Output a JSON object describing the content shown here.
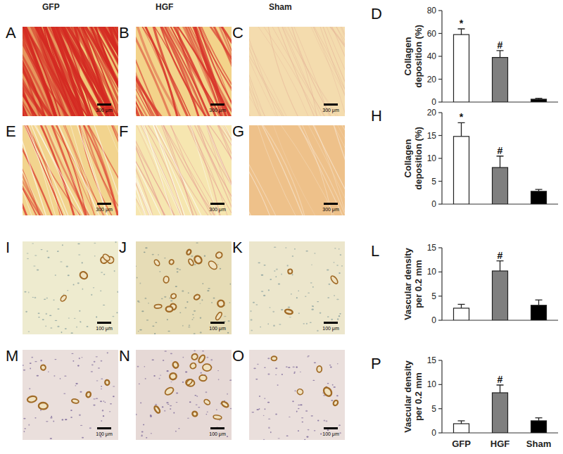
{
  "figure": {
    "columns": [
      "GFP",
      "HGF",
      "Sham"
    ],
    "panels": [
      {
        "letter": "A",
        "scale_bar": "300 μm"
      },
      {
        "letter": "B",
        "scale_bar": "300 μm"
      },
      {
        "letter": "C",
        "scale_bar": "300 μm"
      },
      {
        "letter": "E",
        "scale_bar": "300 μm"
      },
      {
        "letter": "F",
        "scale_bar": "300 μm"
      },
      {
        "letter": "G",
        "scale_bar": "300 μm"
      },
      {
        "letter": "I",
        "scale_bar": "100 μm"
      },
      {
        "letter": "J",
        "scale_bar": "100 μm"
      },
      {
        "letter": "K",
        "scale_bar": "100 μm"
      },
      {
        "letter": "M",
        "scale_bar": "100 μm"
      },
      {
        "letter": "N",
        "scale_bar": "100 μm"
      },
      {
        "letter": "O",
        "scale_bar": "100 μm"
      }
    ],
    "chart_letters": [
      "D",
      "H",
      "L",
      "P"
    ]
  },
  "chart_data": [
    {
      "type": "bar",
      "y_label": "Collagen deposition (%)",
      "categories": [
        null,
        null,
        null
      ],
      "values": [
        59,
        39,
        2.5
      ],
      "errors": [
        5,
        6,
        0.8
      ],
      "significance": [
        "*",
        "#",
        null
      ],
      "colors": [
        "#ffffff",
        "#7f7f7f",
        "#000000"
      ],
      "ylim": [
        0,
        80
      ],
      "yticks": [
        0,
        20,
        40,
        60,
        80
      ],
      "tick_labels": "y"
    },
    {
      "type": "bar",
      "y_label": "Collagen deposition (%)",
      "categories": [
        null,
        null,
        null
      ],
      "values": [
        14.8,
        8,
        2.8
      ],
      "errors": [
        3,
        2.5,
        0.4
      ],
      "significance": [
        "*",
        "#",
        null
      ],
      "colors": [
        "#ffffff",
        "#7f7f7f",
        "#000000"
      ],
      "ylim": [
        0,
        20
      ],
      "yticks": [
        0,
        5,
        10,
        15,
        20
      ],
      "tick_labels": "y"
    },
    {
      "type": "bar",
      "y_label": "Vascular density per 0.2 mm",
      "categories": [
        null,
        null,
        null
      ],
      "values": [
        2.5,
        10.2,
        3.1
      ],
      "errors": [
        0.8,
        2.1,
        1.1
      ],
      "significance": [
        null,
        "#",
        null
      ],
      "colors": [
        "#ffffff",
        "#7f7f7f",
        "#000000"
      ],
      "ylim": [
        0,
        15
      ],
      "yticks": [
        0,
        5,
        10,
        15
      ],
      "tick_labels": "y"
    },
    {
      "type": "bar",
      "y_label": "Vascular density per 0.2 mm",
      "categories": [
        "GFP",
        "HGF",
        "Sham"
      ],
      "values": [
        1.9,
        8.3,
        2.5
      ],
      "errors": [
        0.6,
        1.6,
        0.6
      ],
      "significance": [
        null,
        "#",
        null
      ],
      "colors": [
        "#ffffff",
        "#7f7f7f",
        "#000000"
      ],
      "ylim": [
        0,
        15
      ],
      "yticks": [
        0,
        5,
        10,
        15
      ]
    }
  ]
}
